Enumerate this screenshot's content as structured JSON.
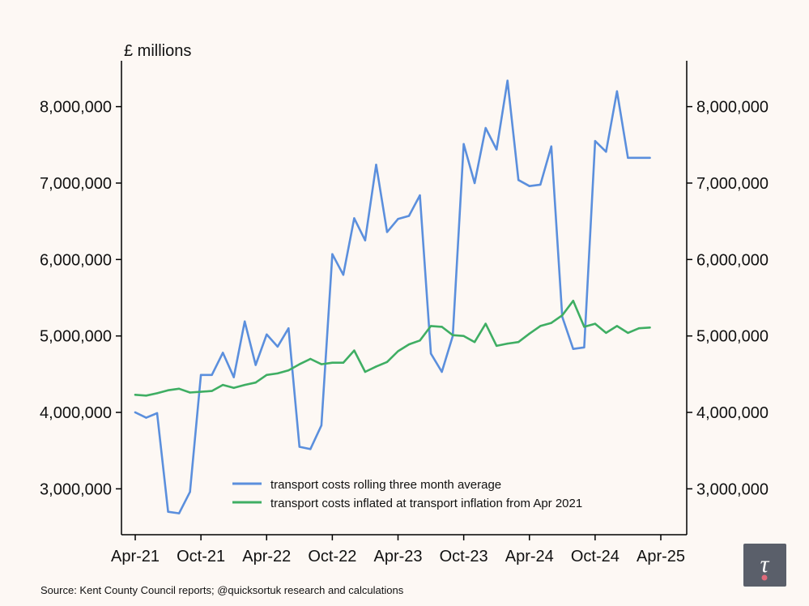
{
  "chart_data": {
    "type": "line",
    "ylabel": "£ millions",
    "ylim": [
      2400000,
      8600000
    ],
    "y_ticks": [
      3000000,
      4000000,
      5000000,
      6000000,
      7000000,
      8000000
    ],
    "y_tick_labels": [
      "3,000,000",
      "4,000,000",
      "5,000,000",
      "6,000,000",
      "7,000,000",
      "8,000,000"
    ],
    "x_start_month": "Apr-21",
    "x_tick_labels": [
      "Apr-21",
      "Oct-21",
      "Apr-22",
      "Oct-22",
      "Apr-23",
      "Oct-23",
      "Apr-24",
      "Oct-24",
      "Apr-25"
    ],
    "x_tick_months": [
      0,
      6,
      12,
      18,
      24,
      30,
      36,
      42,
      48
    ],
    "legend_position": "lower-right",
    "series": [
      {
        "name": "transport costs rolling three month average",
        "color": "#5b8fdd",
        "values": [
          4000000,
          3930000,
          3990000,
          2700000,
          2680000,
          2960000,
          4490000,
          4490000,
          4780000,
          4460000,
          5190000,
          4620000,
          5020000,
          4860000,
          5100000,
          3550000,
          3520000,
          3830000,
          6070000,
          5800000,
          6540000,
          6250000,
          7240000,
          6360000,
          6530000,
          6570000,
          6840000,
          4770000,
          4530000,
          5000000,
          7510000,
          7000000,
          7720000,
          7440000,
          8340000,
          7040000,
          6960000,
          6980000,
          7480000,
          5250000,
          4830000,
          4850000,
          7550000,
          7410000,
          8200000,
          7330000,
          7330000,
          7330000
        ]
      },
      {
        "name": "transport costs inflated at transport inflation from Apr 2021",
        "color": "#3fae63",
        "values": [
          4230000,
          4220000,
          4250000,
          4290000,
          4310000,
          4260000,
          4270000,
          4280000,
          4360000,
          4320000,
          4360000,
          4390000,
          4490000,
          4510000,
          4550000,
          4630000,
          4700000,
          4630000,
          4650000,
          4650000,
          4810000,
          4530000,
          4600000,
          4660000,
          4800000,
          4890000,
          4940000,
          5130000,
          5120000,
          5010000,
          5000000,
          4920000,
          5160000,
          4870000,
          4900000,
          4920000,
          5030000,
          5130000,
          5170000,
          5270000,
          5460000,
          5120000,
          5160000,
          5040000,
          5130000,
          5040000,
          5100000,
          5110000
        ]
      }
    ],
    "source": "Source: Kent County Council reports; @quicksortuk research and calculations"
  },
  "logo": {
    "glyph": "τ",
    "accent_color": "#e06a7a",
    "background": "#5a5f6a"
  }
}
